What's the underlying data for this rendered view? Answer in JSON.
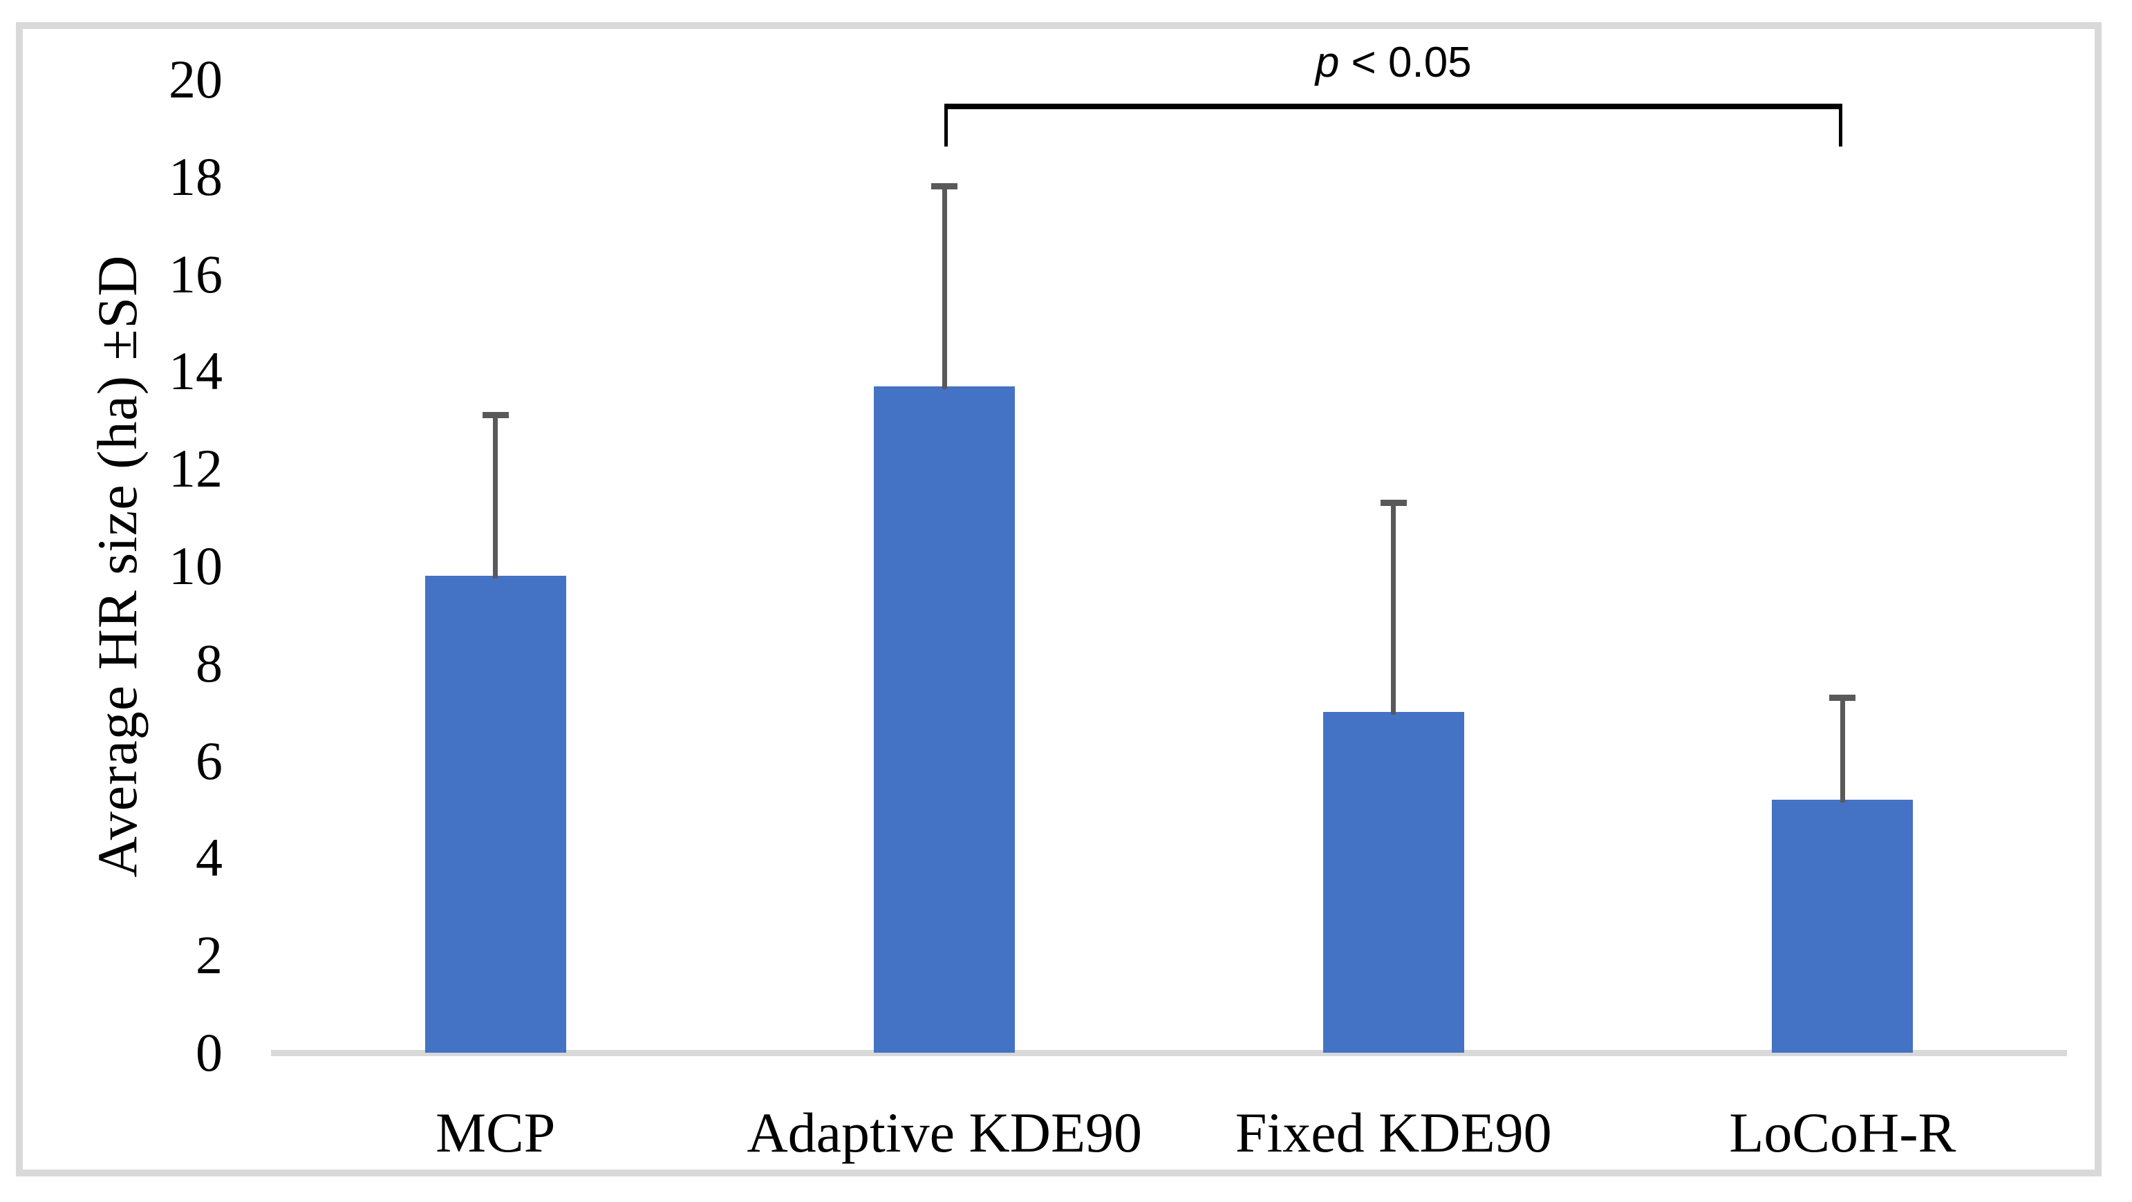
{
  "figure": {
    "background_color": "#ffffff",
    "border_color": "#d9d9d9"
  },
  "chart_data": {
    "type": "bar",
    "title": "",
    "xlabel": "",
    "ylabel": "Average HR size (ha) ±SD",
    "categories": [
      "MCP",
      "Adaptive KDE90",
      "Fixed KDE90",
      "LoCoH-R"
    ],
    "values": [
      9.8,
      13.7,
      7.0,
      5.2
    ],
    "error_sd": [
      3.3,
      4.1,
      4.3,
      2.1
    ],
    "error_bar_tops": [
      13.1,
      17.8,
      11.3,
      7.3
    ],
    "error_bars_direction": "upper_only",
    "ylim": [
      0,
      20
    ],
    "yticks": [
      0,
      2,
      4,
      6,
      8,
      10,
      12,
      14,
      16,
      18,
      20
    ],
    "grid": false,
    "legend": "none",
    "bar_color": "#4472c4",
    "error_bar_color": "#595959",
    "axis_line_color": "#d9d9d9",
    "annotation": {
      "text": "p < 0.05",
      "italic_prefix": "p",
      "rest": " < 0.05",
      "from_category": "Adaptive KDE90",
      "to_category": "LoCoH-R",
      "bracket_color": "#000000"
    }
  }
}
